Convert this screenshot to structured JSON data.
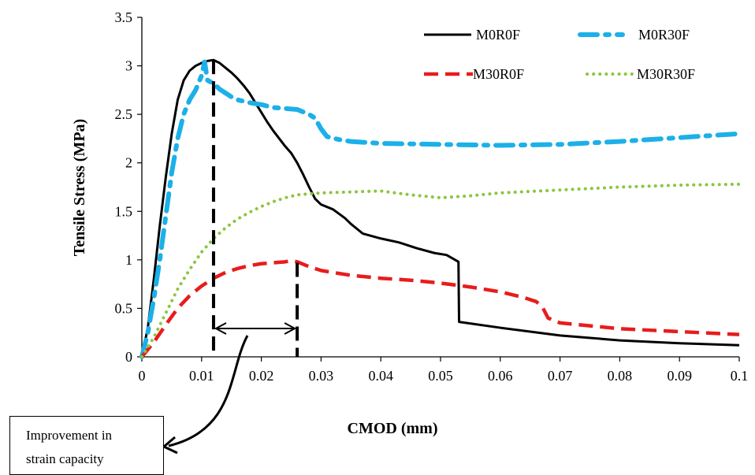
{
  "chart_data": {
    "type": "line",
    "title": "",
    "xlabel": "CMOD (mm)",
    "ylabel": "Tensile Stress (MPa)",
    "xlim": [
      0,
      0.1
    ],
    "ylim": [
      0,
      3.5
    ],
    "x_ticks": [
      "0",
      "0.01",
      "0.02",
      "0.03",
      "0.04",
      "0.05",
      "0.06",
      "0.07",
      "0.08",
      "0.09",
      "0.1"
    ],
    "y_ticks": [
      "0",
      "0.5",
      "1",
      "1.5",
      "2",
      "2.5",
      "3",
      "3.5"
    ],
    "grid": false,
    "legend_position": "top-right",
    "series": [
      {
        "name": "M0R0F",
        "color": "#000000",
        "style": "solid",
        "points": [
          [
            0,
            0
          ],
          [
            0.001,
            0.3
          ],
          [
            0.002,
            0.8
          ],
          [
            0.003,
            1.35
          ],
          [
            0.004,
            1.85
          ],
          [
            0.005,
            2.3
          ],
          [
            0.006,
            2.65
          ],
          [
            0.007,
            2.85
          ],
          [
            0.008,
            2.95
          ],
          [
            0.009,
            3.0
          ],
          [
            0.01,
            3.03
          ],
          [
            0.011,
            3.05
          ],
          [
            0.012,
            3.06
          ],
          [
            0.013,
            3.03
          ],
          [
            0.014,
            2.98
          ],
          [
            0.015,
            2.93
          ],
          [
            0.016,
            2.87
          ],
          [
            0.017,
            2.8
          ],
          [
            0.018,
            2.72
          ],
          [
            0.019,
            2.62
          ],
          [
            0.02,
            2.52
          ],
          [
            0.021,
            2.42
          ],
          [
            0.022,
            2.33
          ],
          [
            0.023,
            2.25
          ],
          [
            0.024,
            2.17
          ],
          [
            0.025,
            2.1
          ],
          [
            0.026,
            2.0
          ],
          [
            0.027,
            1.88
          ],
          [
            0.028,
            1.75
          ],
          [
            0.029,
            1.63
          ],
          [
            0.03,
            1.57
          ],
          [
            0.032,
            1.52
          ],
          [
            0.034,
            1.43
          ],
          [
            0.035,
            1.37
          ],
          [
            0.037,
            1.27
          ],
          [
            0.04,
            1.22
          ],
          [
            0.043,
            1.18
          ],
          [
            0.046,
            1.12
          ],
          [
            0.049,
            1.07
          ],
          [
            0.051,
            1.05
          ],
          [
            0.053,
            0.98
          ],
          [
            0.0531,
            0.36
          ],
          [
            0.06,
            0.3
          ],
          [
            0.07,
            0.22
          ],
          [
            0.08,
            0.17
          ],
          [
            0.09,
            0.14
          ],
          [
            0.1,
            0.12
          ]
        ]
      },
      {
        "name": "M0R30F",
        "color": "#1CB0E8",
        "style": "dash-dot",
        "points": [
          [
            0,
            0
          ],
          [
            0.001,
            0.25
          ],
          [
            0.002,
            0.6
          ],
          [
            0.003,
            1.0
          ],
          [
            0.004,
            1.45
          ],
          [
            0.005,
            1.9
          ],
          [
            0.006,
            2.25
          ],
          [
            0.007,
            2.5
          ],
          [
            0.008,
            2.65
          ],
          [
            0.009,
            2.75
          ],
          [
            0.01,
            2.9
          ],
          [
            0.0105,
            3.04
          ],
          [
            0.011,
            2.85
          ],
          [
            0.012,
            2.82
          ],
          [
            0.013,
            2.76
          ],
          [
            0.014,
            2.72
          ],
          [
            0.015,
            2.68
          ],
          [
            0.016,
            2.65
          ],
          [
            0.018,
            2.62
          ],
          [
            0.02,
            2.6
          ],
          [
            0.022,
            2.57
          ],
          [
            0.024,
            2.56
          ],
          [
            0.026,
            2.55
          ],
          [
            0.028,
            2.5
          ],
          [
            0.029,
            2.46
          ],
          [
            0.03,
            2.35
          ],
          [
            0.031,
            2.27
          ],
          [
            0.033,
            2.24
          ],
          [
            0.035,
            2.22
          ],
          [
            0.04,
            2.2
          ],
          [
            0.05,
            2.19
          ],
          [
            0.06,
            2.18
          ],
          [
            0.07,
            2.19
          ],
          [
            0.08,
            2.22
          ],
          [
            0.09,
            2.26
          ],
          [
            0.1,
            2.3
          ]
        ]
      },
      {
        "name": "M30R0F",
        "color": "#E81C1C",
        "style": "dashed",
        "points": [
          [
            0,
            0
          ],
          [
            0.002,
            0.15
          ],
          [
            0.004,
            0.33
          ],
          [
            0.006,
            0.5
          ],
          [
            0.008,
            0.63
          ],
          [
            0.01,
            0.73
          ],
          [
            0.012,
            0.81
          ],
          [
            0.014,
            0.87
          ],
          [
            0.016,
            0.91
          ],
          [
            0.018,
            0.94
          ],
          [
            0.02,
            0.96
          ],
          [
            0.022,
            0.97
          ],
          [
            0.024,
            0.98
          ],
          [
            0.025,
            0.99
          ],
          [
            0.026,
            0.98
          ],
          [
            0.028,
            0.93
          ],
          [
            0.03,
            0.89
          ],
          [
            0.033,
            0.86
          ],
          [
            0.035,
            0.84
          ],
          [
            0.04,
            0.81
          ],
          [
            0.045,
            0.79
          ],
          [
            0.05,
            0.76
          ],
          [
            0.055,
            0.72
          ],
          [
            0.06,
            0.67
          ],
          [
            0.064,
            0.61
          ],
          [
            0.066,
            0.57
          ],
          [
            0.067,
            0.52
          ],
          [
            0.068,
            0.4
          ],
          [
            0.07,
            0.35
          ],
          [
            0.075,
            0.32
          ],
          [
            0.08,
            0.29
          ],
          [
            0.09,
            0.26
          ],
          [
            0.1,
            0.23
          ]
        ]
      },
      {
        "name": "M30R30F",
        "color": "#8CC63F",
        "style": "dotted",
        "points": [
          [
            0,
            0
          ],
          [
            0.002,
            0.2
          ],
          [
            0.004,
            0.45
          ],
          [
            0.006,
            0.7
          ],
          [
            0.008,
            0.9
          ],
          [
            0.01,
            1.08
          ],
          [
            0.012,
            1.22
          ],
          [
            0.014,
            1.33
          ],
          [
            0.016,
            1.42
          ],
          [
            0.018,
            1.49
          ],
          [
            0.02,
            1.55
          ],
          [
            0.022,
            1.6
          ],
          [
            0.024,
            1.64
          ],
          [
            0.026,
            1.67
          ],
          [
            0.028,
            1.68
          ],
          [
            0.03,
            1.69
          ],
          [
            0.035,
            1.7
          ],
          [
            0.04,
            1.71
          ],
          [
            0.045,
            1.67
          ],
          [
            0.05,
            1.64
          ],
          [
            0.055,
            1.66
          ],
          [
            0.06,
            1.69
          ],
          [
            0.07,
            1.72
          ],
          [
            0.08,
            1.75
          ],
          [
            0.09,
            1.77
          ],
          [
            0.1,
            1.78
          ]
        ]
      }
    ],
    "markers": {
      "start_x": 0.012,
      "end_x": 0.026,
      "start_top_y": 3.06,
      "end_top_y": 0.97,
      "arrow_y": 0.3
    },
    "annotation": {
      "line1": "Improvement in",
      "line2": "strain capacity"
    }
  }
}
